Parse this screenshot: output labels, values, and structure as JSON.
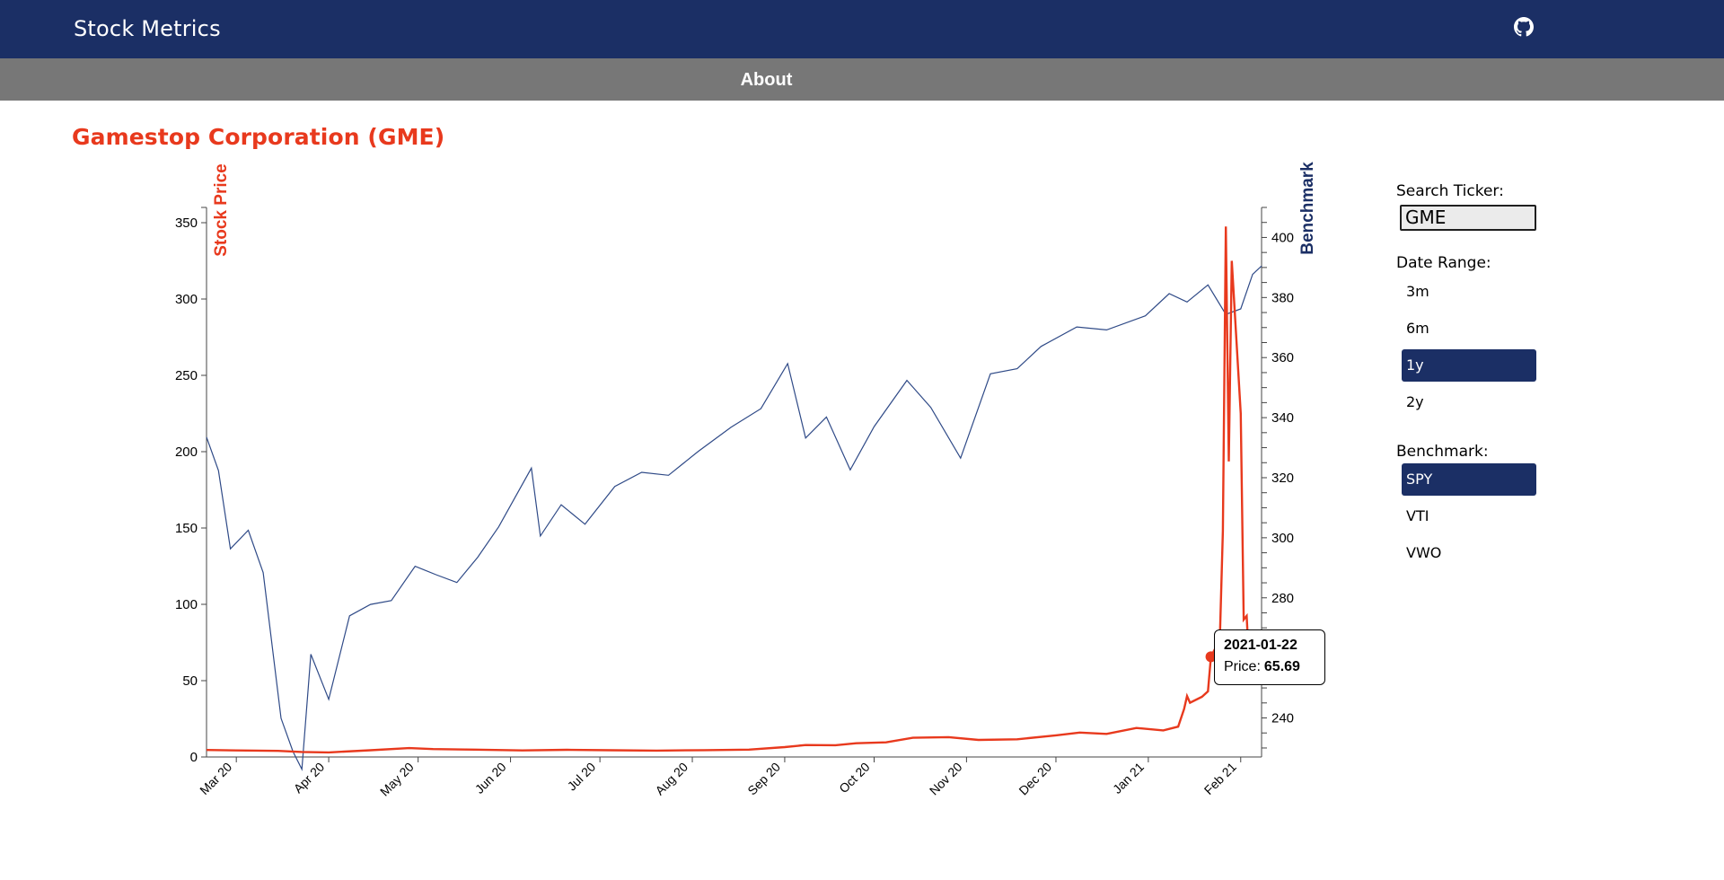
{
  "app": {
    "title": "Stock Metrics"
  },
  "nav": {
    "about": "About"
  },
  "page": {
    "title": "Gamestop Corporation (GME)"
  },
  "controls": {
    "search_label": "Search Ticker:",
    "search_value": "GME",
    "date_range_label": "Date Range:",
    "date_ranges": [
      "3m",
      "6m",
      "1y",
      "2y"
    ],
    "date_range_selected": "1y",
    "benchmark_label": "Benchmark:",
    "benchmarks": [
      "SPY",
      "VTI",
      "VWO"
    ],
    "benchmark_selected": "SPY"
  },
  "tooltip": {
    "date": "2021-01-22",
    "price_label": "Price:",
    "price": "65.69"
  },
  "colors": {
    "brand": "#1b2f65",
    "stock": "#e8391d",
    "benchmark": "#1b2f65",
    "subbar": "#777777"
  },
  "icons": {
    "repo": "github-icon"
  },
  "chart_data": {
    "type": "line",
    "left_axis_label": "Stock Price",
    "right_axis_label": "Benchmark",
    "left_ylim": [
      0,
      360
    ],
    "right_ylim": [
      227,
      410
    ],
    "left_ticks": [
      0,
      50,
      100,
      150,
      200,
      250,
      300,
      350
    ],
    "right_ticks": [
      240,
      260,
      280,
      300,
      320,
      340,
      360,
      380,
      400
    ],
    "x_ticks": [
      "Mar 20",
      "Apr 20",
      "May 20",
      "Jun 20",
      "Jul 20",
      "Aug 20",
      "Sep 20",
      "Oct 20",
      "Nov 20",
      "Dec 20",
      "Jan 21",
      "Feb 21"
    ],
    "x_tick_dates": [
      "2020-03-01",
      "2020-04-01",
      "2020-05-01",
      "2020-06-01",
      "2020-07-01",
      "2020-08-01",
      "2020-09-01",
      "2020-10-01",
      "2020-11-01",
      "2020-12-01",
      "2021-01-01",
      "2021-02-01"
    ],
    "x_range": [
      "2020-02-20",
      "2021-02-08"
    ],
    "series": [
      {
        "name": "Stock Price",
        "axis": "left",
        "points": [
          [
            "2020-02-20",
            4.6
          ],
          [
            "2020-03-01",
            4.3
          ],
          [
            "2020-03-15",
            4.0
          ],
          [
            "2020-03-23",
            3.3
          ],
          [
            "2020-04-01",
            3.0
          ],
          [
            "2020-04-15",
            4.4
          ],
          [
            "2020-04-28",
            5.8
          ],
          [
            "2020-05-06",
            5.2
          ],
          [
            "2020-05-20",
            4.8
          ],
          [
            "2020-06-05",
            4.3
          ],
          [
            "2020-06-20",
            4.7
          ],
          [
            "2020-07-05",
            4.4
          ],
          [
            "2020-07-20",
            4.2
          ],
          [
            "2020-08-05",
            4.5
          ],
          [
            "2020-08-20",
            4.8
          ],
          [
            "2020-09-01",
            6.5
          ],
          [
            "2020-09-08",
            7.8
          ],
          [
            "2020-09-18",
            7.7
          ],
          [
            "2020-09-25",
            9.0
          ],
          [
            "2020-10-05",
            9.6
          ],
          [
            "2020-10-14",
            12.6
          ],
          [
            "2020-10-26",
            13.0
          ],
          [
            "2020-11-05",
            11.2
          ],
          [
            "2020-11-18",
            11.6
          ],
          [
            "2020-12-01",
            14.2
          ],
          [
            "2020-12-09",
            16.0
          ],
          [
            "2020-12-18",
            15.1
          ],
          [
            "2020-12-28",
            19.0
          ],
          [
            "2021-01-06",
            17.4
          ],
          [
            "2021-01-11",
            19.9
          ],
          [
            "2021-01-13",
            31.4
          ],
          [
            "2021-01-14",
            39.9
          ],
          [
            "2021-01-15",
            35.5
          ],
          [
            "2021-01-19",
            39.4
          ],
          [
            "2021-01-21",
            43.0
          ],
          [
            "2021-01-22",
            65.69
          ],
          [
            "2021-01-25",
            76.8
          ],
          [
            "2021-01-26",
            147.98
          ],
          [
            "2021-01-27",
            347.5
          ],
          [
            "2021-01-28",
            193.6
          ],
          [
            "2021-01-29",
            325.0
          ],
          [
            "2021-02-01",
            225.0
          ],
          [
            "2021-02-02",
            90.0
          ],
          [
            "2021-02-03",
            92.4
          ],
          [
            "2021-02-04",
            53.5
          ],
          [
            "2021-02-05",
            63.8
          ]
        ]
      },
      {
        "name": "Benchmark",
        "axis": "right",
        "points": [
          [
            "2020-02-20",
            333.5
          ],
          [
            "2020-02-24",
            322.4
          ],
          [
            "2020-02-28",
            296.3
          ],
          [
            "2020-03-05",
            302.5
          ],
          [
            "2020-03-10",
            288.4
          ],
          [
            "2020-03-16",
            239.9
          ],
          [
            "2020-03-20",
            228.8
          ],
          [
            "2020-03-23",
            222.9
          ],
          [
            "2020-03-26",
            261.2
          ],
          [
            "2020-04-01",
            246.2
          ],
          [
            "2020-04-08",
            274.0
          ],
          [
            "2020-04-15",
            277.8
          ],
          [
            "2020-04-22",
            279.1
          ],
          [
            "2020-04-30",
            290.5
          ],
          [
            "2020-05-07",
            287.7
          ],
          [
            "2020-05-14",
            285.1
          ],
          [
            "2020-05-21",
            293.5
          ],
          [
            "2020-05-28",
            303.6
          ],
          [
            "2020-06-08",
            323.2
          ],
          [
            "2020-06-11",
            300.6
          ],
          [
            "2020-06-18",
            311.0
          ],
          [
            "2020-06-26",
            304.5
          ],
          [
            "2020-07-06",
            317.1
          ],
          [
            "2020-07-15",
            321.8
          ],
          [
            "2020-07-24",
            320.8
          ],
          [
            "2020-08-03",
            328.8
          ],
          [
            "2020-08-14",
            336.8
          ],
          [
            "2020-08-24",
            343.0
          ],
          [
            "2020-09-02",
            358.0
          ],
          [
            "2020-09-08",
            333.2
          ],
          [
            "2020-09-15",
            340.2
          ],
          [
            "2020-09-23",
            322.6
          ],
          [
            "2020-10-01",
            337.0
          ],
          [
            "2020-10-12",
            352.4
          ],
          [
            "2020-10-20",
            343.4
          ],
          [
            "2020-10-30",
            326.5
          ],
          [
            "2020-11-09",
            354.6
          ],
          [
            "2020-11-18",
            356.3
          ],
          [
            "2020-11-26",
            363.7
          ],
          [
            "2020-12-08",
            370.2
          ],
          [
            "2020-12-18",
            369.2
          ],
          [
            "2020-12-31",
            373.9
          ],
          [
            "2021-01-08",
            381.3
          ],
          [
            "2021-01-14",
            378.5
          ],
          [
            "2021-01-21",
            384.2
          ],
          [
            "2021-01-27",
            374.4
          ],
          [
            "2021-02-01",
            376.2
          ],
          [
            "2021-02-05",
            387.7
          ],
          [
            "2021-02-08",
            390.5
          ]
        ]
      }
    ],
    "highlight_point": [
      "2021-01-22",
      65.69
    ]
  }
}
